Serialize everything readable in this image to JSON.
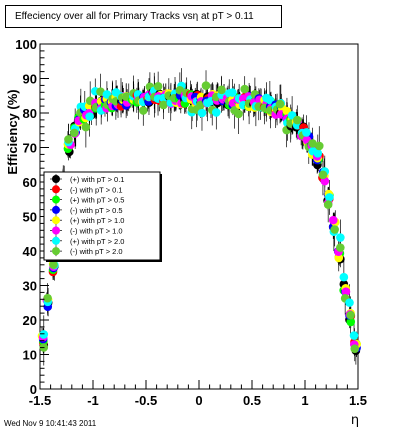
{
  "chart_data": {
    "type": "scatter",
    "title": "Effeciency over all for Primary Tracks vsη at pT > 0.11",
    "xlabel": "η",
    "ylabel": "Efficiency (%)",
    "xlim": [
      -1.5,
      1.5
    ],
    "ylim": [
      0,
      100
    ],
    "x_ticks": [
      "-1.5",
      "-1",
      "-0.5",
      "0",
      "0.5",
      "1",
      "1.5"
    ],
    "y_ticks": [
      "0",
      "10",
      "20",
      "30",
      "40",
      "50",
      "60",
      "70",
      "80",
      "90",
      "100"
    ],
    "legend_position": "center-left",
    "error_bars": true,
    "series": [
      {
        "name": "(+) with pT > 0.1",
        "color": "#000000"
      },
      {
        "name": "(-) with pT > 0.1",
        "color": "#ff0000"
      },
      {
        "name": "(+) with pT > 0.5",
        "color": "#00ff00"
      },
      {
        "name": "(-) with pT > 0.5",
        "color": "#0000ff"
      },
      {
        "name": "(+) with pT > 1.0",
        "color": "#ffff00"
      },
      {
        "name": "(-) with pT > 1.0",
        "color": "#ff00ff"
      },
      {
        "name": "(+) with pT > 2.0",
        "color": "#00ffff"
      },
      {
        "name": "(-) with pT > 2.0",
        "color": "#66cc33"
      }
    ],
    "curve_points": [
      [
        -1.5,
        11
      ],
      [
        -1.47,
        15
      ],
      [
        -1.44,
        21
      ],
      [
        -1.41,
        28
      ],
      [
        -1.38,
        34
      ],
      [
        -1.35,
        40
      ],
      [
        -1.32,
        48
      ],
      [
        -1.29,
        56
      ],
      [
        -1.26,
        63
      ],
      [
        -1.23,
        69
      ],
      [
        -1.2,
        73
      ],
      [
        -1.15,
        77
      ],
      [
        -1.1,
        79
      ],
      [
        -1.0,
        81
      ],
      [
        -0.9,
        82.5
      ],
      [
        -0.8,
        83
      ],
      [
        -0.6,
        84
      ],
      [
        -0.4,
        84.5
      ],
      [
        -0.2,
        84
      ],
      [
        0.0,
        84
      ],
      [
        0.2,
        84
      ],
      [
        0.4,
        83.5
      ],
      [
        0.6,
        83
      ],
      [
        0.8,
        80
      ],
      [
        0.9,
        77
      ],
      [
        1.0,
        74
      ],
      [
        1.05,
        71
      ],
      [
        1.1,
        68
      ],
      [
        1.15,
        64
      ],
      [
        1.2,
        59
      ],
      [
        1.25,
        52
      ],
      [
        1.29,
        46
      ],
      [
        1.33,
        38
      ],
      [
        1.37,
        30
      ],
      [
        1.41,
        24
      ],
      [
        1.44,
        18
      ],
      [
        1.47,
        13
      ],
      [
        1.5,
        10
      ]
    ]
  },
  "footer": {
    "timestamp": "Wed Nov  9 10:41:43 2011"
  }
}
